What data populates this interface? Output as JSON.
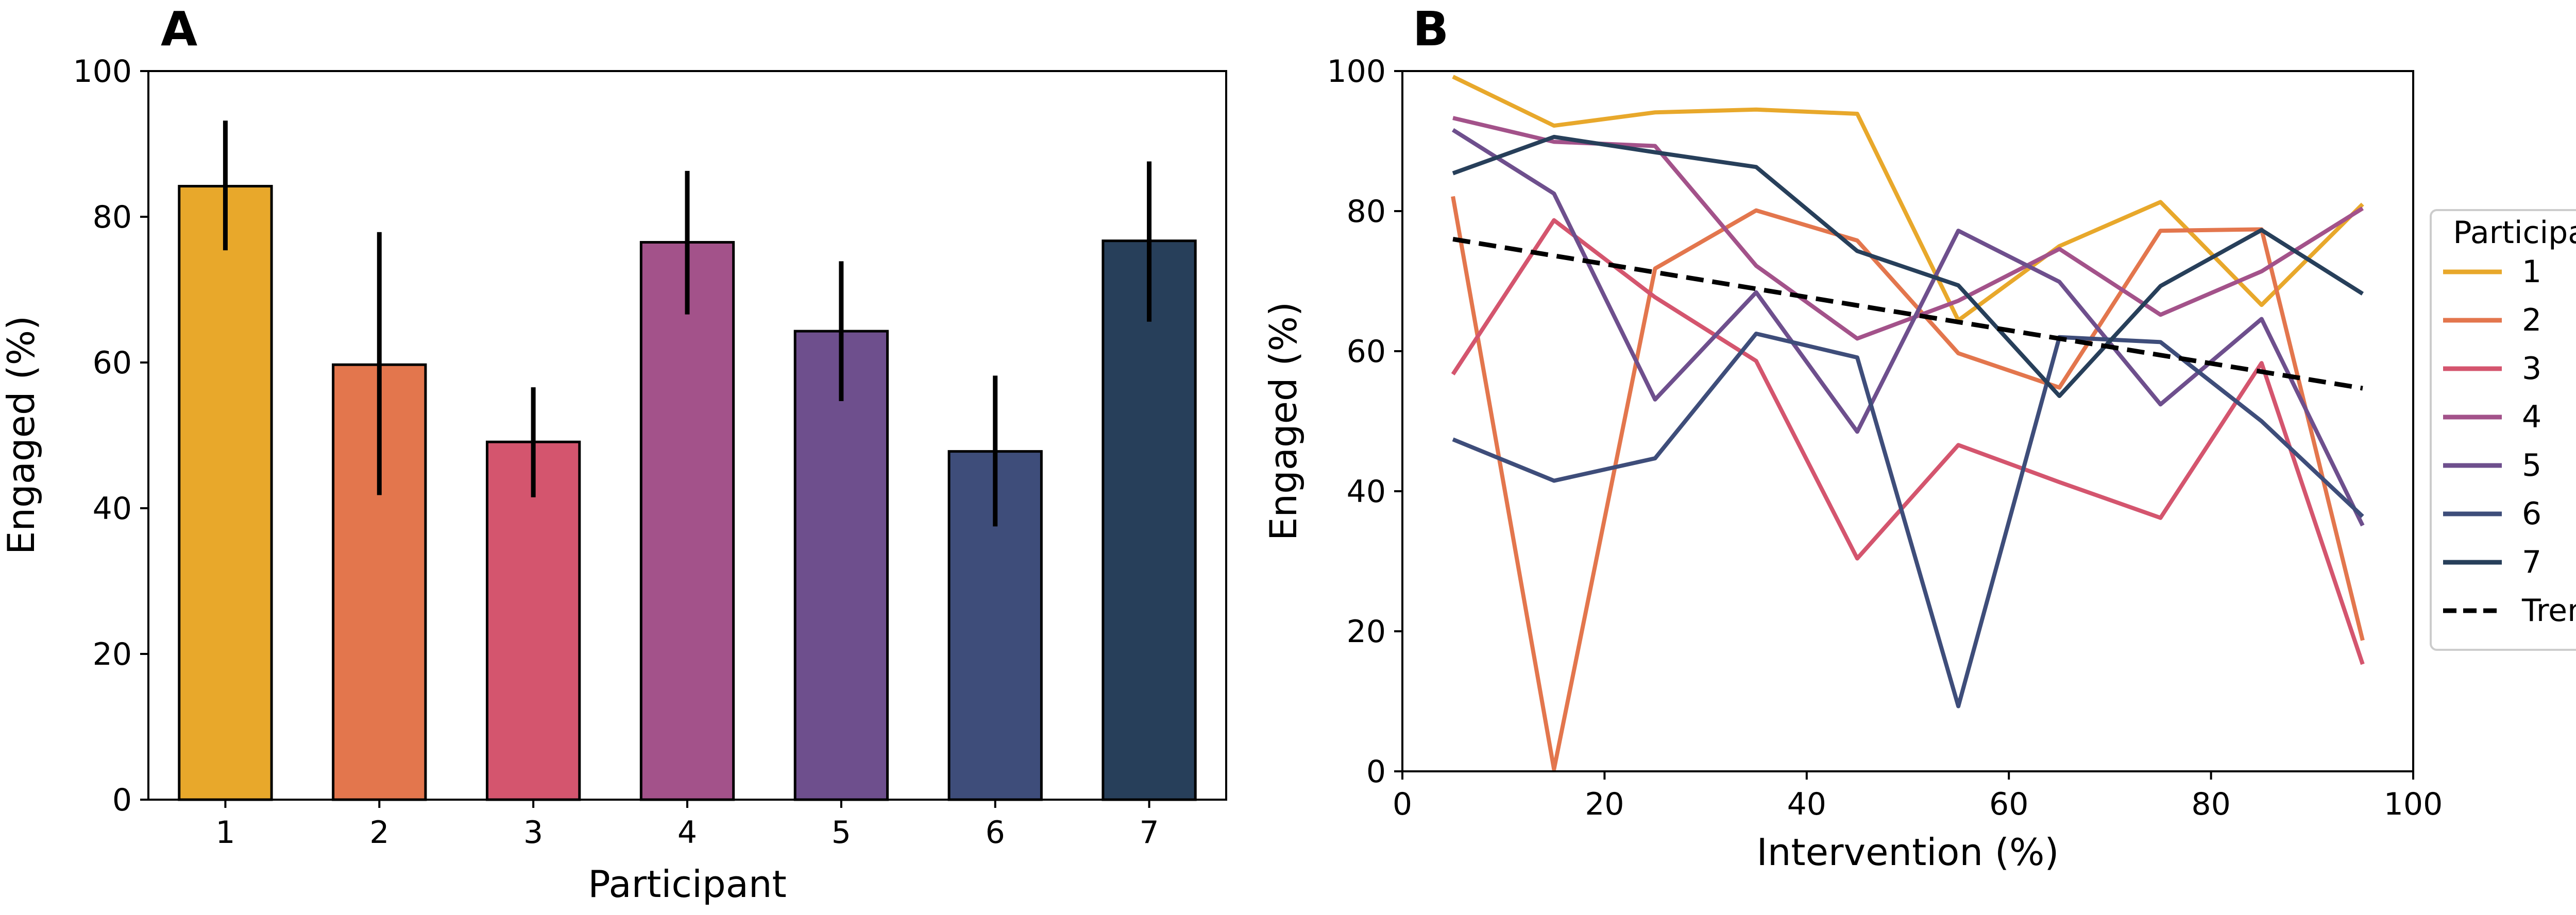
{
  "chart_data": [
    {
      "panel": "A",
      "type": "bar",
      "title": "",
      "xlabel": "Participant",
      "ylabel": "Engaged (%)",
      "ylim": [
        0,
        100
      ],
      "yticks": [
        0,
        20,
        40,
        60,
        80,
        100
      ],
      "categories": [
        "1",
        "2",
        "3",
        "4",
        "5",
        "6",
        "7"
      ],
      "values": [
        84.2,
        59.7,
        49.1,
        76.5,
        64.3,
        47.8,
        76.7
      ],
      "errors": [
        [
          75.4,
          93.2
        ],
        [
          41.8,
          77.9
        ],
        [
          41.5,
          56.6
        ],
        [
          66.6,
          86.3
        ],
        [
          54.7,
          73.9
        ],
        [
          37.5,
          58.2
        ],
        [
          65.6,
          87.6
        ]
      ],
      "colors": [
        "#e8a82b",
        "#e3764d",
        "#d4556e",
        "#a3528a",
        "#6e4f8d",
        "#3e4d7a",
        "#273f5a"
      ]
    },
    {
      "panel": "B",
      "type": "line",
      "title": "",
      "xlabel": "Intervention (%)",
      "ylabel": "Engaged (%)",
      "xlim": [
        0,
        100
      ],
      "ylim": [
        0,
        100
      ],
      "xticks": [
        0,
        20,
        40,
        60,
        80,
        100
      ],
      "yticks": [
        0,
        20,
        40,
        60,
        80,
        100
      ],
      "x": [
        5,
        15,
        25,
        35,
        45,
        55,
        65,
        75,
        85,
        95
      ],
      "legend_title": "Participant",
      "legend_position": "right outside",
      "series": [
        {
          "name": "1",
          "color": "#e8a82b",
          "values": [
            99.2,
            92.2,
            94.1,
            94.5,
            93.9,
            64.4,
            75.0,
            81.3,
            66.6,
            81.0
          ]
        },
        {
          "name": "2",
          "color": "#e3764d",
          "values": [
            82.1,
            0.3,
            71.8,
            80.1,
            75.8,
            59.7,
            54.8,
            77.2,
            77.4,
            18.7
          ]
        },
        {
          "name": "3",
          "color": "#d4556e",
          "values": [
            56.7,
            78.7,
            67.7,
            58.6,
            30.4,
            46.6,
            41.3,
            36.2,
            58.3,
            15.3
          ]
        },
        {
          "name": "4",
          "color": "#a3528a",
          "values": [
            93.3,
            89.9,
            89.3,
            72.2,
            61.8,
            67.2,
            74.6,
            65.2,
            71.4,
            80.4
          ]
        },
        {
          "name": "5",
          "color": "#6e4f8d",
          "values": [
            91.6,
            82.5,
            53.1,
            68.4,
            48.5,
            77.2,
            69.9,
            52.4,
            64.6,
            35.1
          ]
        },
        {
          "name": "6",
          "color": "#3e4d7a",
          "values": [
            47.4,
            41.5,
            44.7,
            62.5,
            59.1,
            9.3,
            62.0,
            61.3,
            50.0,
            36.4
          ]
        },
        {
          "name": "7",
          "color": "#273f5a",
          "values": [
            85.4,
            90.6,
            88.4,
            86.3,
            74.3,
            69.4,
            53.6,
            69.3,
            77.3,
            68.2
          ]
        }
      ],
      "trend": {
        "name": "Trend",
        "x": [
          5,
          95
        ],
        "values": [
          76.0,
          54.7
        ],
        "color": "#000000",
        "style": "dashed"
      }
    }
  ]
}
